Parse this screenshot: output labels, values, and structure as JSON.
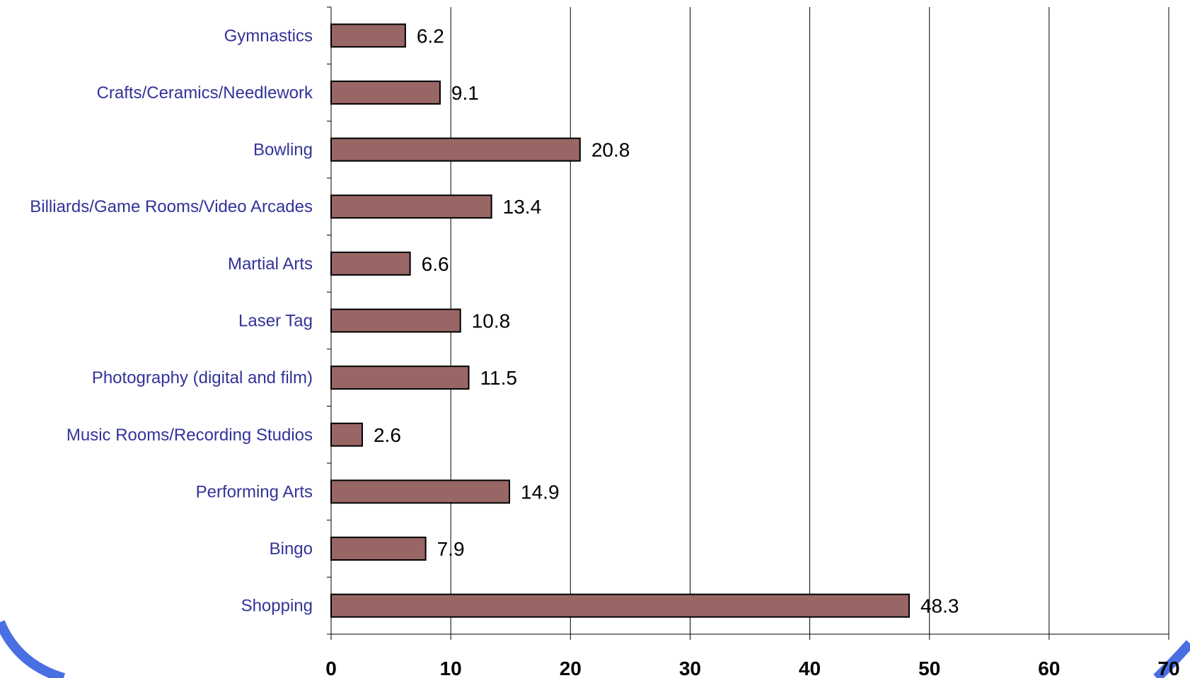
{
  "chart_data": {
    "type": "bar",
    "orientation": "horizontal",
    "categories": [
      "Gymnastics",
      "Crafts/Ceramics/Needlework",
      "Bowling",
      "Billiards/Game Rooms/Video Arcades",
      "Martial Arts",
      "Laser Tag",
      "Photography (digital and film)",
      "Music Rooms/Recording Studios",
      "Performing Arts",
      "Bingo",
      "Shopping"
    ],
    "values": [
      6.2,
      9.1,
      20.8,
      13.4,
      6.6,
      10.8,
      11.5,
      2.6,
      14.9,
      7.9,
      48.3
    ],
    "value_labels": [
      "6.2",
      "9.1",
      "20.8",
      "13.4",
      "6.6",
      "10.8",
      "11.5",
      "2.6",
      "14.9",
      "7.9",
      "48.3"
    ],
    "title": "",
    "xlabel": "",
    "ylabel": "",
    "xlim": [
      0,
      70
    ],
    "x_ticks": [
      0,
      10,
      20,
      30,
      40,
      50,
      60,
      70
    ],
    "x_tick_labels": [
      "0",
      "10",
      "20",
      "30",
      "40",
      "50",
      "60",
      "70"
    ],
    "grid": "vertical",
    "legend": "none",
    "colors": {
      "bar_fill": "#996666",
      "bar_stroke": "#000000",
      "category_text": "#333399",
      "value_text": "#000000",
      "gridline": "#000000",
      "decor_arc": "#4a6fe3"
    }
  }
}
